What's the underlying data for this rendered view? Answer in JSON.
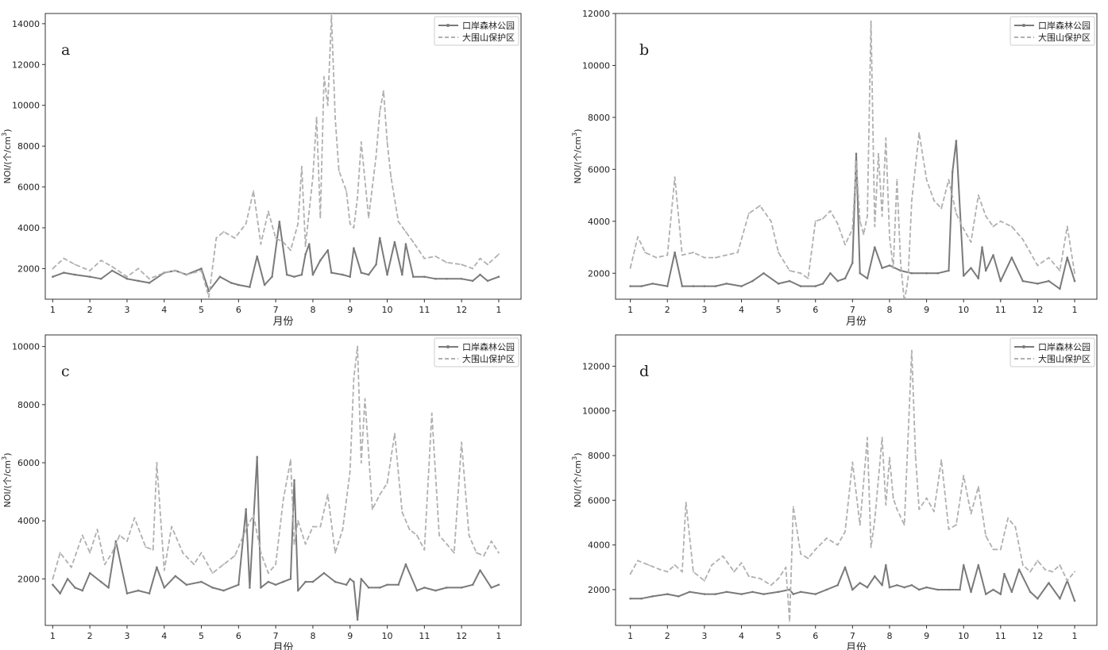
{
  "figure": {
    "legend_labels": [
      "口岸森林公园",
      "大围山保护区"
    ],
    "xlabel": "月份",
    "ylabel_prefix": "NOI/(个/cm",
    "ylabel_sup": "3",
    "ylabel_suffix": ")",
    "x_tick_labels": [
      "1",
      "2",
      "3",
      "4",
      "5",
      "6",
      "7",
      "8",
      "9",
      "10",
      "11",
      "12",
      "1"
    ]
  },
  "colors": {
    "series1": "#7a7a7a",
    "series2": "#b0b0b0",
    "axis": "#333333",
    "background": "#ffffff"
  },
  "chart_data": [
    {
      "type": "line",
      "panel_label": "a",
      "xlabel": "月份",
      "ylabel": "NOI/(个/cm³)",
      "xlim": [
        0.8,
        13.6
      ],
      "ylim": [
        500,
        14500
      ],
      "yticks": [
        2000,
        4000,
        6000,
        8000,
        10000,
        12000,
        14000
      ],
      "legend_position": "top-right",
      "series": [
        {
          "name": "口岸森林公园",
          "style": "solid-marker",
          "x": [
            1,
            1.3,
            1.6,
            2,
            2.3,
            2.6,
            3,
            3.3,
            3.6,
            4,
            4.3,
            4.6,
            5,
            5.2,
            5.5,
            5.8,
            6,
            6.3,
            6.5,
            6.7,
            6.9,
            7.1,
            7.3,
            7.5,
            7.7,
            7.8,
            7.9,
            8,
            8.2,
            8.4,
            8.5,
            8.8,
            9,
            9.1,
            9.3,
            9.5,
            9.7,
            9.8,
            10,
            10.2,
            10.4,
            10.5,
            10.7,
            11,
            11.3,
            11.6,
            12,
            12.3,
            12.5,
            12.7,
            13
          ],
          "y": [
            1600,
            1800,
            1700,
            1600,
            1500,
            1900,
            1500,
            1400,
            1300,
            1800,
            1900,
            1700,
            2000,
            900,
            1600,
            1300,
            1200,
            1100,
            2600,
            1200,
            1600,
            4300,
            1700,
            1600,
            1700,
            2700,
            3200,
            1700,
            2400,
            2900,
            1800,
            1700,
            1600,
            3000,
            1800,
            1700,
            2200,
            3500,
            1700,
            3300,
            1700,
            3200,
            1600,
            1600,
            1500,
            1500,
            1500,
            1400,
            1700,
            1400,
            1600
          ]
        },
        {
          "name": "大围山保护区",
          "style": "dashed",
          "x": [
            1,
            1.3,
            1.6,
            2,
            2.3,
            2.6,
            3,
            3.3,
            3.6,
            4,
            4.3,
            4.6,
            5,
            5.2,
            5.4,
            5.6,
            5.9,
            6.2,
            6.4,
            6.6,
            6.8,
            7,
            7.2,
            7.4,
            7.6,
            7.7,
            7.8,
            8,
            8.1,
            8.2,
            8.3,
            8.4,
            8.5,
            8.6,
            8.7,
            8.9,
            9,
            9.1,
            9.2,
            9.3,
            9.5,
            9.7,
            9.8,
            9.9,
            10,
            10.1,
            10.3,
            10.5,
            10.7,
            11,
            11.3,
            11.6,
            12,
            12.3,
            12.5,
            12.7,
            13
          ],
          "y": [
            2000,
            2500,
            2200,
            1900,
            2400,
            2100,
            1600,
            2000,
            1500,
            1800,
            1900,
            1700,
            1900,
            600,
            3500,
            3800,
            3500,
            4200,
            5800,
            3200,
            4800,
            3500,
            3300,
            2900,
            4200,
            7000,
            3100,
            6500,
            9400,
            4500,
            11400,
            10000,
            14400,
            9400,
            6800,
            5800,
            4200,
            4000,
            5500,
            8200,
            4500,
            7500,
            9700,
            10700,
            8200,
            6500,
            4300,
            3800,
            3300,
            2500,
            2600,
            2300,
            2200,
            2000,
            2500,
            2200,
            2700
          ]
        }
      ]
    },
    {
      "type": "line",
      "panel_label": "b",
      "xlabel": "月份",
      "ylabel": "NOI/(个/cm³)",
      "xlim": [
        0.6,
        13.6
      ],
      "ylim": [
        1000,
        12000
      ],
      "yticks": [
        2000,
        4000,
        6000,
        8000,
        10000,
        12000
      ],
      "legend_position": "top-right",
      "series": [
        {
          "name": "口岸森林公园",
          "style": "solid-marker",
          "x": [
            1,
            1.3,
            1.6,
            2,
            2.2,
            2.4,
            2.7,
            3,
            3.3,
            3.6,
            4,
            4.3,
            4.6,
            5,
            5.3,
            5.6,
            6,
            6.2,
            6.4,
            6.6,
            6.8,
            7,
            7.1,
            7.2,
            7.4,
            7.6,
            7.8,
            8,
            8.3,
            8.6,
            9,
            9.3,
            9.6,
            9.7,
            9.8,
            10,
            10.2,
            10.4,
            10.5,
            10.6,
            10.8,
            11,
            11.3,
            11.6,
            12,
            12.3,
            12.6,
            12.8,
            13
          ],
          "y": [
            1500,
            1500,
            1600,
            1500,
            2800,
            1500,
            1500,
            1500,
            1500,
            1600,
            1500,
            1700,
            2000,
            1600,
            1700,
            1500,
            1500,
            1600,
            2000,
            1700,
            1800,
            2400,
            6600,
            2000,
            1800,
            3000,
            2200,
            2300,
            2100,
            2000,
            2000,
            2000,
            2100,
            5900,
            7100,
            1900,
            2200,
            1800,
            3000,
            2100,
            2700,
            1700,
            2600,
            1700,
            1600,
            1700,
            1400,
            2600,
            1700
          ]
        },
        {
          "name": "大围山保护区",
          "style": "dashed",
          "x": [
            1,
            1.2,
            1.4,
            1.7,
            2,
            2.2,
            2.4,
            2.7,
            3,
            3.3,
            3.6,
            3.9,
            4.2,
            4.5,
            4.8,
            5,
            5.3,
            5.6,
            5.8,
            6,
            6.2,
            6.4,
            6.6,
            6.8,
            7,
            7.1,
            7.2,
            7.3,
            7.4,
            7.5,
            7.6,
            7.7,
            7.8,
            7.9,
            8,
            8.1,
            8.2,
            8.3,
            8.4,
            8.5,
            8.6,
            8.8,
            9,
            9.2,
            9.4,
            9.6,
            9.8,
            10,
            10.2,
            10.4,
            10.6,
            10.8,
            11,
            11.3,
            11.6,
            12,
            12.3,
            12.6,
            12.8,
            13
          ],
          "y": [
            2200,
            3400,
            2800,
            2600,
            2700,
            5700,
            2700,
            2800,
            2600,
            2600,
            2700,
            2800,
            4300,
            4600,
            4000,
            2800,
            2100,
            2000,
            1800,
            4000,
            4100,
            4400,
            3900,
            3100,
            3700,
            6300,
            4000,
            3500,
            4200,
            11700,
            3800,
            6600,
            4200,
            7200,
            3400,
            2200,
            5600,
            2400,
            900,
            1800,
            4800,
            7400,
            5600,
            4800,
            4500,
            5600,
            4300,
            3700,
            3200,
            5000,
            4200,
            3800,
            4000,
            3800,
            3300,
            2300,
            2600,
            2100,
            3800,
            2000
          ]
        }
      ]
    },
    {
      "type": "line",
      "panel_label": "c",
      "xlabel": "月份",
      "ylabel": "NOI/(个/cm³)",
      "xlim": [
        0.8,
        13.6
      ],
      "ylim": [
        400,
        10400
      ],
      "yticks": [
        2000,
        4000,
        6000,
        8000,
        10000
      ],
      "legend_position": "top-right",
      "series": [
        {
          "name": "口岸森林公园",
          "style": "solid-marker",
          "x": [
            1,
            1.2,
            1.4,
            1.6,
            1.8,
            2,
            2.3,
            2.5,
            2.7,
            3,
            3.3,
            3.6,
            3.8,
            4,
            4.3,
            4.6,
            5,
            5.3,
            5.6,
            6,
            6.2,
            6.3,
            6.5,
            6.6,
            6.8,
            7,
            7.2,
            7.4,
            7.5,
            7.6,
            7.8,
            8,
            8.3,
            8.6,
            8.9,
            9,
            9.1,
            9.2,
            9.3,
            9.5,
            9.8,
            10,
            10.3,
            10.5,
            10.8,
            11,
            11.3,
            11.6,
            12,
            12.3,
            12.5,
            12.8,
            13
          ],
          "y": [
            1800,
            1500,
            2000,
            1700,
            1600,
            2200,
            1900,
            1700,
            3300,
            1500,
            1600,
            1500,
            2400,
            1700,
            2100,
            1800,
            1900,
            1700,
            1600,
            1800,
            4400,
            1700,
            6200,
            1700,
            1900,
            1800,
            1900,
            2000,
            5400,
            1600,
            1900,
            1900,
            2200,
            1900,
            1800,
            2000,
            1900,
            600,
            2000,
            1700,
            1700,
            1800,
            1800,
            2500,
            1600,
            1700,
            1600,
            1700,
            1700,
            1800,
            2300,
            1700,
            1800
          ]
        },
        {
          "name": "大围山保护区",
          "style": "dashed",
          "x": [
            1,
            1.2,
            1.5,
            1.8,
            2,
            2.2,
            2.4,
            2.6,
            2.8,
            3,
            3.2,
            3.5,
            3.7,
            3.8,
            4,
            4.2,
            4.5,
            4.8,
            5,
            5.3,
            5.6,
            5.9,
            6.2,
            6.4,
            6.6,
            6.8,
            7,
            7.2,
            7.4,
            7.5,
            7.6,
            7.8,
            8,
            8.2,
            8.4,
            8.6,
            8.8,
            9,
            9.1,
            9.2,
            9.3,
            9.4,
            9.6,
            9.8,
            10,
            10.2,
            10.4,
            10.6,
            10.8,
            11,
            11.2,
            11.4,
            11.6,
            11.8,
            12,
            12.2,
            12.4,
            12.6,
            12.8,
            13
          ],
          "y": [
            2000,
            2900,
            2400,
            3500,
            2900,
            3700,
            2500,
            2900,
            3500,
            3300,
            4100,
            3100,
            3000,
            6000,
            2300,
            3800,
            2900,
            2500,
            2900,
            2200,
            2500,
            2800,
            3700,
            4200,
            2900,
            2200,
            2500,
            4700,
            6100,
            3200,
            4000,
            3200,
            3800,
            3800,
            4900,
            2900,
            3700,
            5700,
            8900,
            10000,
            6000,
            8200,
            4400,
            4900,
            5300,
            7000,
            4300,
            3700,
            3500,
            3000,
            7700,
            3500,
            3200,
            2900,
            6700,
            3500,
            2900,
            2800,
            3300,
            2900
          ]
        }
      ]
    },
    {
      "type": "line",
      "panel_label": "d",
      "xlabel": "月份",
      "ylabel": "NOI/(个/cm³)",
      "xlim": [
        0.6,
        13.6
      ],
      "ylim": [
        400,
        13400
      ],
      "yticks": [
        2000,
        4000,
        6000,
        8000,
        10000,
        12000
      ],
      "legend_position": "top-right",
      "series": [
        {
          "name": "口岸森林公园",
          "style": "solid-marker",
          "x": [
            1,
            1.3,
            1.6,
            2,
            2.3,
            2.6,
            3,
            3.3,
            3.6,
            4,
            4.3,
            4.6,
            5,
            5.3,
            5.4,
            5.6,
            6,
            6.3,
            6.6,
            6.8,
            7,
            7.2,
            7.4,
            7.6,
            7.8,
            7.9,
            8,
            8.2,
            8.4,
            8.6,
            8.8,
            9,
            9.3,
            9.6,
            9.9,
            10,
            10.2,
            10.4,
            10.6,
            10.8,
            11,
            11.1,
            11.3,
            11.5,
            11.8,
            12,
            12.3,
            12.6,
            12.8,
            13
          ],
          "y": [
            1600,
            1600,
            1700,
            1800,
            1700,
            1900,
            1800,
            1800,
            1900,
            1800,
            1900,
            1800,
            1900,
            2000,
            1800,
            1900,
            1800,
            2000,
            2200,
            3000,
            2000,
            2300,
            2100,
            2600,
            2200,
            3100,
            2100,
            2200,
            2100,
            2200,
            2000,
            2100,
            2000,
            2000,
            2000,
            3100,
            1900,
            3100,
            1800,
            2000,
            1800,
            2700,
            1900,
            2900,
            1900,
            1600,
            2300,
            1600,
            2400,
            1500
          ]
        },
        {
          "name": "大围山保护区",
          "style": "dashed",
          "x": [
            1,
            1.2,
            1.5,
            1.8,
            2,
            2.2,
            2.4,
            2.5,
            2.7,
            3,
            3.2,
            3.5,
            3.8,
            4,
            4.2,
            4.5,
            4.8,
            5,
            5.2,
            5.3,
            5.4,
            5.6,
            5.8,
            6,
            6.3,
            6.6,
            6.8,
            7,
            7.2,
            7.4,
            7.5,
            7.6,
            7.8,
            7.9,
            8,
            8.1,
            8.2,
            8.4,
            8.6,
            8.7,
            8.8,
            9,
            9.2,
            9.4,
            9.6,
            9.8,
            10,
            10.2,
            10.4,
            10.6,
            10.8,
            11,
            11.2,
            11.4,
            11.6,
            11.8,
            12,
            12.2,
            12.4,
            12.6,
            12.8,
            13
          ],
          "y": [
            2700,
            3300,
            3100,
            2900,
            2800,
            3100,
            2800,
            5900,
            2800,
            2400,
            3100,
            3500,
            2800,
            3200,
            2600,
            2500,
            2200,
            2500,
            3000,
            600,
            5700,
            3600,
            3400,
            3800,
            4300,
            4000,
            4600,
            7700,
            4900,
            8800,
            3900,
            5100,
            8800,
            5800,
            7900,
            6100,
            5600,
            4900,
            12700,
            8000,
            5600,
            6100,
            5500,
            7800,
            4700,
            4900,
            7100,
            5400,
            6600,
            4400,
            3800,
            3800,
            5200,
            4800,
            3100,
            2800,
            3300,
            2900,
            2800,
            3100,
            2400,
            2800
          ]
        }
      ]
    }
  ]
}
